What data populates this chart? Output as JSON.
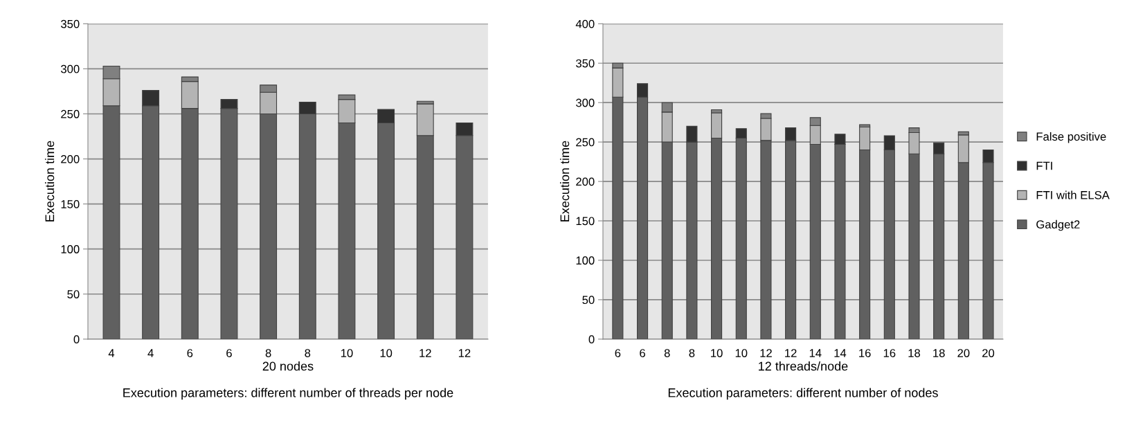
{
  "chart_data": [
    {
      "type": "bar",
      "stacked": true,
      "ylabel": "Execution time",
      "xlabel": "20 nodes",
      "annotations": [
        "Execution parameters: different number of threads per node"
      ],
      "categories": [
        "4",
        "4",
        "6",
        "6",
        "8",
        "8",
        "10",
        "10",
        "12",
        "12"
      ],
      "series": [
        {
          "color": "#606060",
          "values": [
            259,
            259,
            256,
            256,
            250,
            250,
            240,
            240,
            226,
            226
          ]
        },
        {
          "color": "#b4b4b4",
          "values": [
            30,
            null,
            30,
            null,
            24,
            null,
            26,
            null,
            35,
            null
          ]
        },
        {
          "color": "#303030",
          "values": [
            null,
            17,
            null,
            10,
            null,
            13,
            null,
            15,
            null,
            14
          ]
        },
        {
          "color": "#808080",
          "values": [
            14,
            null,
            5,
            null,
            8,
            null,
            5,
            null,
            3,
            null
          ]
        }
      ],
      "ylim": [
        0,
        350
      ],
      "yticks": [
        0,
        50,
        100,
        150,
        200,
        250,
        300,
        350
      ],
      "grid": "y",
      "legend": false
    },
    {
      "type": "bar",
      "stacked": true,
      "ylabel": "Execution time",
      "xlabel": "12 threads/node",
      "annotations": [
        "Execution parameters: different number of nodes"
      ],
      "categories": [
        "6",
        "6",
        "8",
        "8",
        "10",
        "10",
        "12",
        "12",
        "14",
        "14",
        "16",
        "16",
        "18",
        "18",
        "20",
        "20"
      ],
      "series": [
        {
          "name": "Gadget2",
          "color": "#606060",
          "values": [
            307,
            307,
            250,
            250,
            255,
            255,
            252,
            252,
            247,
            247,
            240,
            240,
            235,
            235,
            224,
            224
          ]
        },
        {
          "name": "FTI with ELSA",
          "color": "#b4b4b4",
          "values": [
            37,
            null,
            38,
            null,
            32,
            null,
            28,
            null,
            24,
            null,
            29,
            null,
            27,
            null,
            35,
            null
          ]
        },
        {
          "name": "FTI",
          "color": "#303030",
          "values": [
            null,
            17,
            null,
            20,
            null,
            12,
            null,
            16,
            null,
            13,
            null,
            18,
            null,
            14,
            null,
            16
          ]
        },
        {
          "name": "False positive",
          "color": "#808080",
          "values": [
            6,
            null,
            12,
            null,
            4,
            null,
            6,
            null,
            10,
            null,
            3,
            null,
            6,
            null,
            4,
            null
          ]
        }
      ],
      "ylim": [
        0,
        400
      ],
      "yticks": [
        0,
        50,
        100,
        150,
        200,
        250,
        300,
        350,
        400
      ],
      "grid": "y",
      "legend": "right"
    }
  ]
}
